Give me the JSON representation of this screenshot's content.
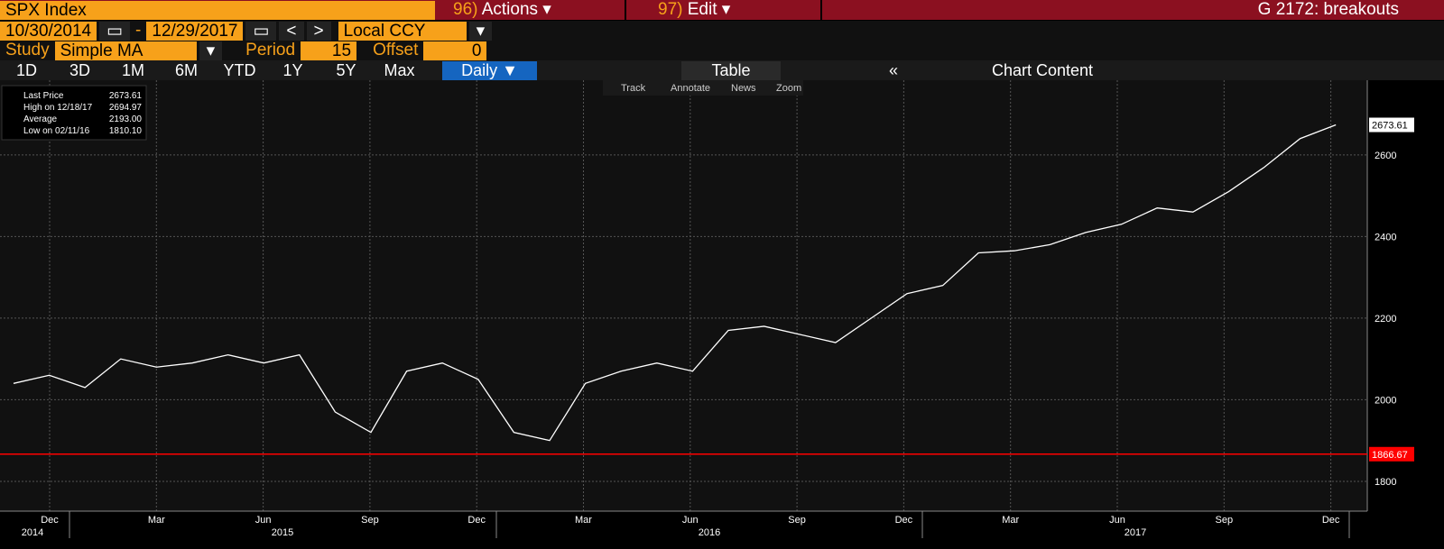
{
  "header": {
    "ticker": "SPX Index",
    "actions_num": "96)",
    "actions": "Actions",
    "edit_num": "97)",
    "edit": "Edit",
    "page_title": "G 2172: breakouts"
  },
  "dates": {
    "start": "10/30/2014",
    "dash": "-",
    "end": "12/29/2017",
    "prev": "<",
    "next": ">",
    "currency": "Local CCY"
  },
  "study": {
    "label": "Study",
    "value": "Simple MA",
    "period_label": "Period",
    "period": "15",
    "offset_label": "Offset",
    "offset": "0"
  },
  "ranges": [
    "1D",
    "3D",
    "1M",
    "6M",
    "YTD",
    "1Y",
    "5Y",
    "Max"
  ],
  "frequency": "Daily",
  "table": "Table",
  "chart_content": "Chart Content",
  "tools": [
    "Track",
    "Annotate",
    "News",
    "Zoom"
  ],
  "legend": [
    {
      "label": "Last Price",
      "value": "2673.61"
    },
    {
      "label": "High on 12/18/17",
      "value": "2694.97"
    },
    {
      "label": "Average",
      "value": "2193.00"
    },
    {
      "label": "Low on 02/11/16",
      "value": "1810.10"
    }
  ],
  "chart_data": {
    "type": "line",
    "x": [
      "2014-11",
      "2014-12",
      "2015-01",
      "2015-02",
      "2015-03",
      "2015-04",
      "2015-05",
      "2015-06",
      "2015-07",
      "2015-08",
      "2015-09",
      "2015-10",
      "2015-11",
      "2015-12",
      "2016-01",
      "2016-02",
      "2016-03",
      "2016-04",
      "2016-05",
      "2016-06",
      "2016-07",
      "2016-08",
      "2016-09",
      "2016-10",
      "2016-11",
      "2016-12",
      "2017-01",
      "2017-02",
      "2017-03",
      "2017-04",
      "2017-05",
      "2017-06",
      "2017-07",
      "2017-08",
      "2017-09",
      "2017-10",
      "2017-11",
      "2017-12"
    ],
    "series": [
      {
        "name": "Last Price",
        "color": "#ffffff",
        "values": [
          2040,
          2060,
          2030,
          2100,
          2080,
          2090,
          2110,
          2090,
          2110,
          1970,
          1920,
          2070,
          2090,
          2050,
          1920,
          1900,
          2040,
          2070,
          2090,
          2070,
          2170,
          2180,
          2160,
          2140,
          2200,
          2260,
          2280,
          2360,
          2365,
          2380,
          2410,
          2430,
          2470,
          2460,
          2510,
          2570,
          2640,
          2673.61
        ]
      }
    ],
    "last_price_label": "2673.61",
    "hline": {
      "value": 1866.67,
      "label": "1866.67",
      "color": "#ff0000"
    },
    "ylim": [
      1727,
      2783
    ],
    "yticks": [
      1800,
      2000,
      2200,
      2400,
      2600
    ],
    "month_labels": [
      "Dec",
      "Mar",
      "Jun",
      "Sep",
      "Dec",
      "Mar",
      "Jun",
      "Sep",
      "Dec",
      "Mar",
      "Jun",
      "Sep",
      "Dec"
    ],
    "year_labels": [
      "2014",
      "2015",
      "2016",
      "2017"
    ],
    "grid": true
  }
}
